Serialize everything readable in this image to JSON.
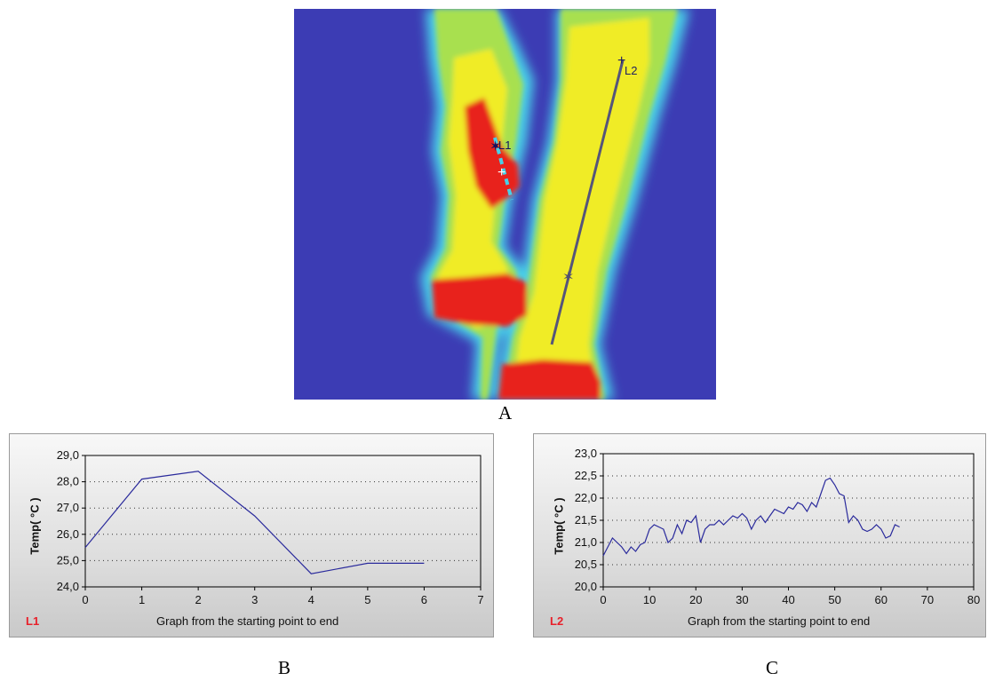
{
  "captions": {
    "a": "A",
    "b": "B",
    "c": "C"
  },
  "thermal_image": {
    "colors": {
      "background": "#3c3cb4",
      "warm": "#f0ec28",
      "hot": "#e8201c",
      "edge": "#48d0e8"
    },
    "markers": {
      "l1": "L1",
      "l2": "L2"
    }
  },
  "chart_data": [
    {
      "type": "line",
      "panel_label": "L1",
      "xlabel": "Graph from the starting point to end",
      "ylabel": "Temp( °C )",
      "xlim": [
        0,
        7
      ],
      "ylim": [
        24.0,
        29.0
      ],
      "x_ticks": [
        0,
        1,
        2,
        3,
        4,
        5,
        6,
        7
      ],
      "y_ticks": [
        "24,0",
        "25,0",
        "26,0",
        "27,0",
        "28,0",
        "29,0"
      ],
      "y_tick_values": [
        24,
        25,
        26,
        27,
        28,
        29
      ],
      "grid": "horizontal dotted",
      "line_color": "#2a2a9c",
      "series": [
        {
          "x": [
            0,
            1,
            2,
            3,
            4,
            5,
            6
          ],
          "y": [
            25.5,
            28.1,
            28.4,
            26.7,
            24.5,
            24.9,
            24.9
          ]
        }
      ]
    },
    {
      "type": "line",
      "panel_label": "L2",
      "xlabel": "Graph from the starting point to end",
      "ylabel": "Temp( °C )",
      "xlim": [
        0,
        80
      ],
      "ylim": [
        20.0,
        23.0
      ],
      "x_ticks": [
        0,
        10,
        20,
        30,
        40,
        50,
        60,
        70,
        80
      ],
      "y_ticks": [
        "20,0",
        "20,5",
        "21,0",
        "21,5",
        "22,0",
        "22,5",
        "23,0"
      ],
      "y_tick_values": [
        20,
        20.5,
        21,
        21.5,
        22,
        22.5,
        23
      ],
      "grid": "horizontal dotted",
      "line_color": "#2a2a9c",
      "series": [
        {
          "x": [
            0,
            1,
            2,
            3,
            4,
            5,
            6,
            7,
            8,
            9,
            10,
            11,
            12,
            13,
            14,
            15,
            16,
            17,
            18,
            19,
            20,
            21,
            22,
            23,
            24,
            25,
            26,
            27,
            28,
            29,
            30,
            31,
            32,
            33,
            34,
            35,
            36,
            37,
            38,
            39,
            40,
            41,
            42,
            43,
            44,
            45,
            46,
            47,
            48,
            49,
            50,
            51,
            52,
            53,
            54,
            55,
            56,
            57,
            58,
            59,
            60,
            61,
            62,
            63,
            64
          ],
          "y": [
            20.7,
            20.9,
            21.1,
            21.0,
            20.9,
            20.75,
            20.9,
            20.8,
            20.95,
            21.0,
            21.3,
            21.4,
            21.35,
            21.3,
            21.0,
            21.1,
            21.4,
            21.2,
            21.5,
            21.45,
            21.6,
            21.0,
            21.3,
            21.4,
            21.4,
            21.5,
            21.4,
            21.5,
            21.6,
            21.55,
            21.65,
            21.55,
            21.3,
            21.5,
            21.6,
            21.45,
            21.6,
            21.75,
            21.7,
            21.65,
            21.8,
            21.75,
            21.9,
            21.85,
            21.7,
            21.9,
            21.8,
            22.1,
            22.4,
            22.45,
            22.3,
            22.1,
            22.05,
            21.45,
            21.6,
            21.5,
            21.3,
            21.25,
            21.3,
            21.4,
            21.3,
            21.1,
            21.15,
            21.4,
            21.35
          ]
        }
      ]
    }
  ]
}
